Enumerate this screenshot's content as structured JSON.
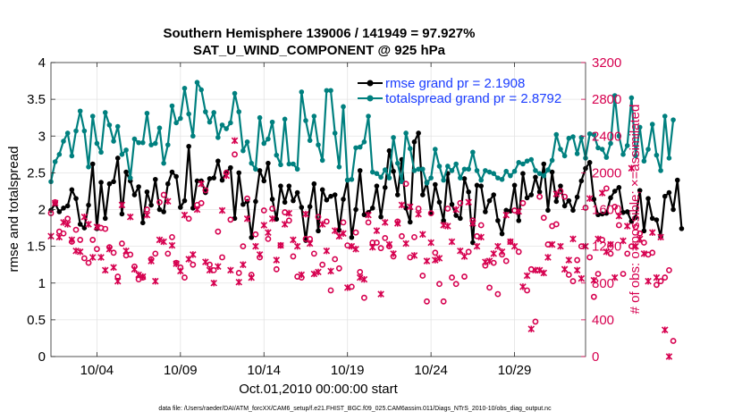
{
  "chart_data": {
    "type": "line",
    "title": "Southern Hemisphere 139006 / 141949 = 97.927%",
    "subtitle": "SAT_U_WIND_COMPONENT @ 925 hPa",
    "xlabel": "Oct.01,2010 00:00:00 start",
    "ylabel": "rmse and totalspread",
    "ylabel_right": "# of obs: o=possible; ×=assimilated",
    "footnote": "data file: /Users/raeder/DAI/ATM_forcXX/CAM6_setup/f.e21.FHIST_BGC.f09_025.CAM6assim.011/Diags_NTrS_2010-10/obs_diag_output.nc",
    "xlim": [
      1.25,
      33.25
    ],
    "ylim": [
      0,
      4
    ],
    "ylim_right": [
      0,
      3200
    ],
    "x_ticks": [
      4,
      9,
      14,
      19,
      24,
      29
    ],
    "x_tick_labels": [
      "10/04",
      "10/09",
      "10/14",
      "10/19",
      "10/24",
      "10/29"
    ],
    "y_ticks": [
      0,
      0.5,
      1,
      1.5,
      2,
      2.5,
      3,
      3.5,
      4
    ],
    "y_tick_labels": [
      "0",
      "0.5",
      "1",
      "1.5",
      "2",
      "2.5",
      "3",
      "3.5",
      "4"
    ],
    "y_right_ticks": [
      0,
      400,
      800,
      1200,
      1600,
      2000,
      2400,
      2800,
      3200
    ],
    "y_right_tick_labels": [
      "0",
      "400",
      "800",
      "1200",
      "1600",
      "2000",
      "2400",
      "2800",
      "3200"
    ],
    "legend_position": "top-right",
    "legend": [
      "rmse grand pr = 2.1908",
      "totalspread grand pr = 2.8792"
    ],
    "series": [
      {
        "name": "rmse grand pr = 2.1908",
        "color": "#000000",
        "x_start": 1.25,
        "x_step": 0.25,
        "values": [
          1.99,
          2.08,
          1.97,
          2.02,
          2.05,
          2.27,
          2.15,
          1.8,
          1.75,
          2.06,
          2.62,
          1.74,
          2.37,
          1.88,
          2.35,
          2.38,
          2.7,
          1.94,
          2.51,
          2.39,
          2.2,
          2.31,
          1.82,
          2.24,
          2.06,
          2.41,
          2.0,
          1.97,
          2.35,
          2.51,
          2.45,
          2.03,
          2.12,
          2.86,
          2.02,
          2.39,
          2.39,
          2.23,
          2.42,
          2.43,
          2.66,
          2.4,
          2.51,
          2.57,
          1.88,
          2.5,
          2.07,
          2.11,
          1.62,
          2.11,
          2.53,
          2.39,
          2.63,
          2.14,
          1.87,
          2.32,
          2.1,
          2.32,
          2.12,
          2.23,
          2.03,
          1.58,
          2.04,
          2.35,
          1.71,
          2.27,
          2.13,
          2.18,
          2.2,
          1.72,
          2.14,
          2.4,
          1.62,
          2.0,
          2.53,
          1.93,
          1.96,
          2.02,
          2.32,
          1.9,
          2.3,
          2.8,
          2.52,
          2.2,
          2.68,
          2.02,
          1.83,
          2.92,
          3.04,
          2.2,
          2.37,
          1.95,
          2.34,
          2.1,
          1.85,
          2.49,
          2.07,
          1.92,
          1.88,
          2.42,
          2.24,
          1.55,
          2.33,
          2.32,
          1.97,
          2.12,
          2.2,
          1.85,
          1.67,
          1.99,
          1.98,
          2.33,
          1.85,
          2.49,
          2.16,
          2.2,
          2.44,
          2.24,
          2.62,
          1.99,
          2.51,
          2.11,
          2.32,
          2.05,
          2.12,
          1.99,
          2.17,
          2.39,
          2.56,
          2.64,
          2.14,
          1.93,
          1.94,
          1.95,
          2.16,
          2.25,
          2.3,
          1.96,
          1.97,
          1.84,
          1.89,
          2.26,
          1.71,
          2.15,
          1.88,
          1.86,
          1.63,
          2.18,
          2.23,
          2.0,
          2.4,
          1.74
        ]
      },
      {
        "name": "totalspread grand pr = 2.8792",
        "color": "#00807f",
        "x_start": 1.25,
        "x_step": 0.25,
        "values": [
          2.38,
          2.65,
          2.75,
          2.93,
          3.04,
          2.73,
          3.07,
          3.34,
          3.07,
          2.58,
          3.27,
          2.9,
          2.78,
          3.32,
          3.15,
          2.93,
          3.13,
          2.75,
          2.81,
          2.43,
          2.96,
          2.91,
          2.91,
          3.31,
          2.88,
          2.9,
          3.11,
          2.63,
          2.88,
          3.41,
          3.18,
          3.24,
          3.65,
          3.3,
          3.0,
          3.73,
          3.63,
          3.33,
          3.19,
          3.32,
          2.98,
          3.15,
          3.1,
          3.18,
          3.58,
          3.33,
          2.8,
          2.92,
          2.63,
          2.55,
          3.25,
          2.9,
          2.96,
          3.19,
          2.74,
          2.61,
          3.23,
          2.62,
          2.62,
          2.55,
          3.6,
          3.21,
          2.94,
          3.27,
          2.88,
          2.67,
          3.62,
          3.62,
          3.04,
          2.58,
          3.4,
          2.4,
          2.41,
          2.84,
          2.85,
          2.92,
          3.27,
          2.51,
          2.49,
          2.44,
          2.54,
          2.43,
          2.98,
          2.63,
          2.38,
          3.04,
          2.83,
          2.53,
          2.55,
          2.55,
          2.36,
          2.43,
          2.82,
          2.59,
          2.4,
          2.59,
          2.53,
          2.62,
          2.43,
          2.55,
          2.55,
          2.78,
          2.53,
          2.4,
          2.53,
          2.51,
          2.49,
          2.43,
          2.41,
          2.52,
          2.46,
          2.52,
          2.64,
          2.62,
          2.66,
          2.68,
          2.53,
          2.49,
          2.46,
          2.54,
          2.67,
          3.02,
          2.82,
          2.73,
          2.97,
          2.99,
          2.76,
          2.98,
          2.7,
          3.03,
          3.02,
          2.84,
          2.82,
          2.71,
          2.9,
          3.55,
          3.0,
          2.75,
          2.87,
          3.52,
          2.73,
          3.12,
          2.66,
          2.82,
          3.16,
          2.74,
          2.53,
          3.27,
          2.7,
          3.22
        ]
      },
      {
        "name": "possible obs",
        "color": "#d6004f",
        "marker": "o",
        "axis": "right",
        "x_start": 1.25,
        "x_step": 0.25,
        "values": [
          1560,
          1680,
          1360,
          1340,
          1500,
          1250,
          1380,
          1270,
          1070,
          1020,
          1270,
          1170,
          1400,
          1390,
          1190,
          1130,
          870,
          1230,
          1100,
          1110,
          980,
          840,
          860,
          1600,
          1060,
          1120,
          1680,
          1760,
          1120,
          1300,
          1020,
          970,
          860,
          1500,
          1000,
          1650,
          1670,
          1810,
          1000,
          940,
          1360,
          1080,
          2000,
          1490,
          2200,
          910,
          1200,
          1720,
          890,
          1330,
          1080,
          1590,
          1280,
          1610,
          950,
          1210,
          1570,
          1480,
          1090,
          870,
          860,
          1280,
          1280,
          1120,
          1520,
          1000,
          1470,
          720,
          1060,
          960,
          1460,
          1210,
          760,
          1350,
          920,
          640,
          1460,
          1240,
          1240,
          1180,
          1290,
          1200,
          1090,
          1470,
          1310,
          1880,
          1080,
          1300,
          1610,
          880,
          600,
          1560,
          1130,
          790,
          600,
          1610,
          860,
          790,
          1670,
          870,
          1140,
          1480,
          1310,
          1430,
          990,
          750,
          1020,
          680,
          1110,
          1040,
          1250,
          1590,
          1140,
          1670,
          720,
          950,
          380,
          1740,
          1510,
          1220,
          1420,
          1440,
          1800,
          1740,
          890,
          820,
          1050,
          1200,
          1620,
          1080,
          650,
          900,
          1270,
          1830,
          1120,
          1630,
          1430,
          900,
          1120,
          1200,
          1410,
          1340,
          1240,
          1110,
          1130,
          780,
          820,
          860,
          940,
          170
        ]
      },
      {
        "name": "assimilated obs",
        "color": "#d6004f",
        "marker": "x",
        "axis": "right",
        "x_start": 1.25,
        "x_step": 0.25,
        "values": [
          1310,
          1670,
          1300,
          1460,
          1440,
          1270,
          1150,
          1140,
          1520,
          1440,
          1080,
          1410,
          1080,
          940,
          1170,
          970,
          820,
          1650,
          1150,
          1520,
          950,
          890,
          870,
          1540,
          1040,
          820,
          1270,
          1250,
          1690,
          1210,
          1010,
          930,
          1540,
          1060,
          1110,
          1600,
          1880,
          1030,
          940,
          800,
          980,
          1590,
          1970,
          940,
          2350,
          810,
          1000,
          1500,
          860,
          1200,
          1110,
          1430,
          1350,
          1500,
          1050,
          1210,
          1440,
          1560,
          1270,
          1200,
          890,
          1550,
          1230,
          900,
          920,
          1440,
          1150,
          930,
          1370,
          1310,
          1340,
          750,
          1200,
          1170,
          860,
          840,
          1540,
          1190,
          1370,
          680,
          1460,
          1220,
          1120,
          1450,
          1650,
          1230,
          1630,
          1100,
          1550,
          1330,
          1040,
          1240,
          1050,
          1070,
          1430,
          1420,
          1250,
          1600,
          1150,
          1090,
          1680,
          1450,
          1200,
          1300,
          1030,
          1040,
          1120,
          1200,
          1140,
          1540,
          1250,
          1200,
          1580,
          760,
          880,
          300,
          940,
          940,
          910,
          1080,
          1220,
          1770,
          1200,
          950,
          1050,
          1280,
          940,
          850,
          1200,
          1720,
          830,
          1280,
          1780,
          1140,
          1220,
          860,
          1530,
          1260,
          1420,
          2050,
          1200,
          1280,
          1120,
          820,
          1350,
          860,
          1300,
          290,
          0
        ]
      }
    ]
  }
}
